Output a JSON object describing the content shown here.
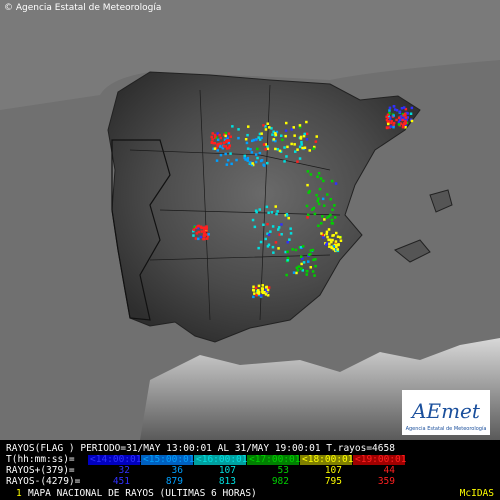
{
  "header": {
    "credit": "© Agencia Estatal de Meteorología"
  },
  "logo": {
    "name": "AEmet",
    "subtitle": "Agencia Estatal de Meteorología"
  },
  "legend": {
    "header": "RAYOS(FLAG ) PERIODO=31/MAY 13:00:01 AL 31/MAY 19:00:01  T.rayos=4658",
    "time_label": "T(hh:mm:ss)=",
    "intervals": [
      "<14:00:01",
      "<15:00:01",
      "<16:00:01",
      "<17:00:01",
      "<18:00:01",
      "<19:00:01"
    ],
    "positive_label": "RAYOS+(379)=",
    "positive": [
      "32",
      "36",
      "107",
      "53",
      "107",
      "44"
    ],
    "negative_label": "RAYOS-(4279)=",
    "negative": [
      "451",
      "879",
      "813",
      "982",
      "795",
      "359"
    ]
  },
  "footer": {
    "index": "1",
    "title": "MAPA NACIONAL DE RAYOS (ULTIMAS 6 HORAS)",
    "system": "McIDAS"
  }
}
